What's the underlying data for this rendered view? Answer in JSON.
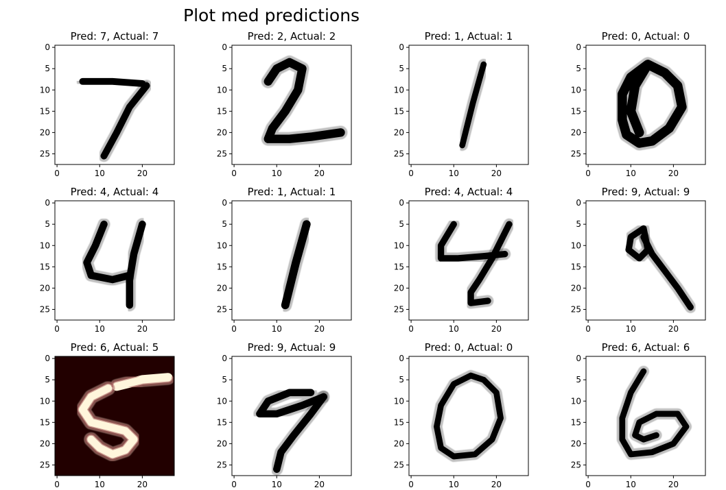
{
  "figure": {
    "suptitle": "Plot med predictions"
  },
  "chart_data": {
    "type": "image-grid",
    "rows": 3,
    "cols": 4,
    "image_size": 28,
    "xticks": [
      0,
      10,
      20
    ],
    "yticks": [
      0,
      5,
      10,
      15,
      20,
      25
    ],
    "xlim": [
      -0.5,
      27.5
    ],
    "ylim": [
      27.5,
      -0.5
    ],
    "colors": {
      "normal_bg": "#ffffff",
      "normal_ink": "#000000",
      "error_bg": "#220000",
      "error_ink": "#fff6dc"
    },
    "panels": [
      {
        "title": "Pred: 7, Actual: 7",
        "pred": 7,
        "actual": 7,
        "correct": true,
        "strokes": [
          [
            [
              6,
              8
            ],
            [
              13,
              8
            ],
            [
              20,
              8.5
            ]
          ],
          [
            [
              21,
              9
            ],
            [
              17,
              14
            ],
            [
              14,
              20
            ],
            [
              11,
              25.5
            ]
          ]
        ],
        "width": 1.6
      },
      {
        "title": "Pred: 2, Actual: 2",
        "pred": 2,
        "actual": 2,
        "correct": true,
        "strokes": [
          [
            [
              8,
              8
            ],
            [
              10,
              5
            ],
            [
              13,
              3.5
            ],
            [
              16,
              5
            ],
            [
              15,
              10
            ],
            [
              12,
              15
            ],
            [
              9,
              19
            ],
            [
              8,
              21.5
            ],
            [
              13,
              21.5
            ],
            [
              18,
              21
            ],
            [
              25,
              20
            ]
          ]
        ],
        "width": 2.0
      },
      {
        "title": "Pred: 1, Actual: 1",
        "pred": 1,
        "actual": 1,
        "correct": true,
        "strokes": [
          [
            [
              17,
              4
            ],
            [
              14.5,
              13
            ],
            [
              12,
              23
            ]
          ]
        ],
        "width": 1.4
      },
      {
        "title": "Pred: 0, Actual: 0",
        "pred": 0,
        "actual": 0,
        "correct": true,
        "strokes": [
          [
            [
              14,
              4
            ],
            [
              10,
              7
            ],
            [
              8,
              11
            ],
            [
              8,
              17
            ],
            [
              9,
              20.5
            ],
            [
              12,
              22.5
            ],
            [
              15,
              22
            ],
            [
              19,
              19
            ],
            [
              22,
              14
            ],
            [
              21,
              9
            ],
            [
              18,
              6
            ],
            [
              14,
              4
            ],
            [
              11,
              9
            ],
            [
              10,
              15
            ],
            [
              12,
              20
            ]
          ]
        ],
        "width": 2.2
      },
      {
        "title": "Pred: 4, Actual: 4",
        "pred": 4,
        "actual": 4,
        "correct": true,
        "strokes": [
          [
            [
              11,
              5
            ],
            [
              9,
              10
            ],
            [
              7,
              14
            ],
            [
              8,
              17
            ],
            [
              13,
              18
            ],
            [
              17,
              17
            ]
          ],
          [
            [
              20,
              5
            ],
            [
              18,
              12
            ],
            [
              17,
              18
            ],
            [
              17,
              24
            ]
          ]
        ],
        "width": 1.7
      },
      {
        "title": "Pred: 1, Actual: 1",
        "pred": 1,
        "actual": 1,
        "correct": true,
        "strokes": [
          [
            [
              17,
              5
            ],
            [
              14.5,
              14
            ],
            [
              12,
              24
            ]
          ]
        ],
        "width": 1.9
      },
      {
        "title": "Pred: 4, Actual: 4",
        "pred": 4,
        "actual": 4,
        "correct": true,
        "strokes": [
          [
            [
              10,
              5
            ],
            [
              7,
              10
            ],
            [
              7,
              13
            ],
            [
              11,
              13
            ],
            [
              17,
              12.5
            ],
            [
              22,
              12
            ]
          ],
          [
            [
              23,
              5
            ],
            [
              19,
              13
            ],
            [
              16,
              18
            ],
            [
              14,
              21
            ],
            [
              14,
              23.5
            ],
            [
              18,
              23
            ]
          ]
        ],
        "width": 1.5
      },
      {
        "title": "Pred: 9, Actual: 9",
        "pred": 9,
        "actual": 9,
        "correct": true,
        "strokes": [
          [
            [
              13,
              6
            ],
            [
              10,
              8
            ],
            [
              9.5,
              11
            ],
            [
              12,
              13
            ],
            [
              14,
              11
            ],
            [
              13,
              6
            ]
          ],
          [
            [
              13,
              8
            ],
            [
              15,
              12
            ],
            [
              18,
              16
            ],
            [
              21,
              20
            ],
            [
              24,
              24.5
            ]
          ]
        ],
        "width": 1.5
      },
      {
        "title": "Pred: 6, Actual: 5",
        "pred": 6,
        "actual": 5,
        "correct": false,
        "strokes": [
          [
            [
              26,
              4.5
            ],
            [
              20,
              5
            ],
            [
              14,
              6.5
            ]
          ],
          [
            [
              12,
              7
            ],
            [
              8,
              9
            ],
            [
              6,
              12
            ],
            [
              8,
              15
            ],
            [
              12,
              16
            ],
            [
              16,
              17
            ],
            [
              18,
              19
            ],
            [
              16,
              21.5
            ],
            [
              13,
              22.5
            ],
            [
              10,
              21
            ],
            [
              8,
              19
            ]
          ]
        ],
        "width": 2.2
      },
      {
        "title": "Pred: 9, Actual: 9",
        "pred": 9,
        "actual": 9,
        "correct": true,
        "strokes": [
          [
            [
              18,
              8
            ],
            [
              13,
              8
            ],
            [
              8,
              10
            ],
            [
              6,
              13
            ],
            [
              10,
              13
            ],
            [
              16,
              11
            ],
            [
              21,
              9
            ]
          ],
          [
            [
              21,
              9
            ],
            [
              18,
              13
            ],
            [
              14,
              18
            ],
            [
              11,
              22
            ],
            [
              10,
              26
            ]
          ]
        ],
        "width": 1.7
      },
      {
        "title": "Pred: 0, Actual: 0",
        "pred": 0,
        "actual": 0,
        "correct": true,
        "strokes": [
          [
            [
              14,
              4
            ],
            [
              10,
              6
            ],
            [
              7,
              11
            ],
            [
              6,
              16
            ],
            [
              7,
              21
            ],
            [
              10,
              23
            ],
            [
              15,
              22.5
            ],
            [
              19,
              19
            ],
            [
              21,
              14
            ],
            [
              20,
              8
            ],
            [
              17,
              5
            ],
            [
              14,
              4
            ]
          ]
        ],
        "width": 1.4
      },
      {
        "title": "Pred: 6, Actual: 6",
        "pred": 6,
        "actual": 6,
        "correct": true,
        "strokes": [
          [
            [
              13,
              3
            ],
            [
              10,
              8
            ],
            [
              8,
              14
            ],
            [
              8,
              19
            ],
            [
              10,
              22.5
            ],
            [
              15,
              22
            ],
            [
              20,
              20
            ],
            [
              23,
              16
            ],
            [
              21,
              13
            ],
            [
              16,
              13
            ],
            [
              12,
              15
            ],
            [
              11,
              18
            ],
            [
              13,
              19
            ],
            [
              16,
              18
            ]
          ]
        ],
        "width": 1.4
      }
    ]
  }
}
